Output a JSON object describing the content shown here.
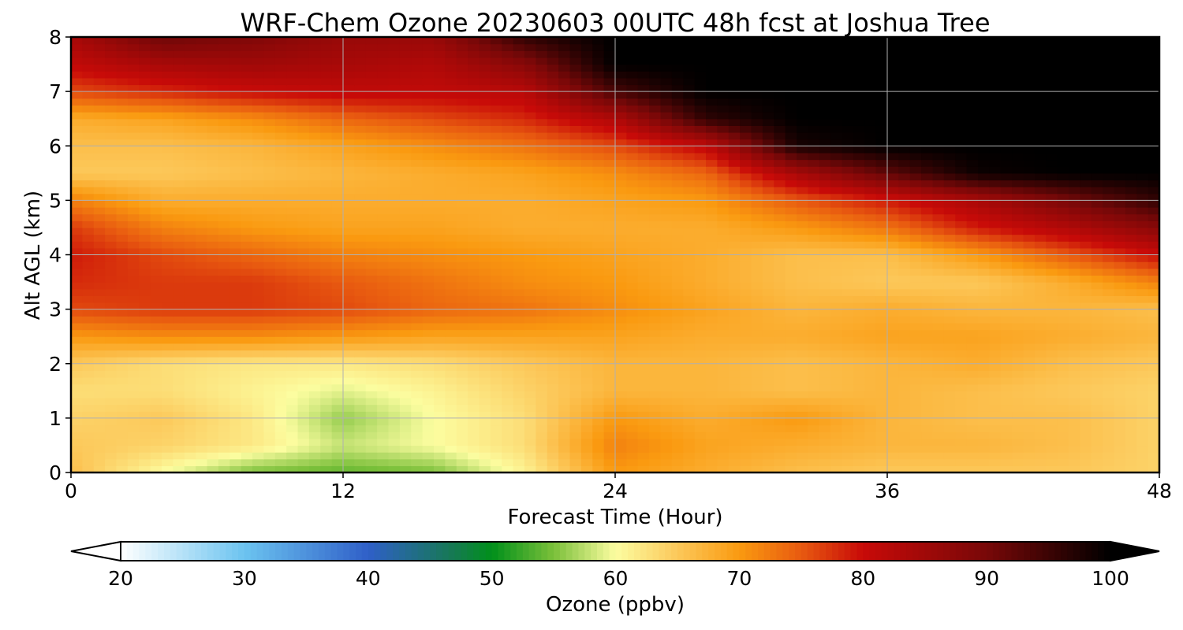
{
  "chart_data": {
    "type": "heatmap",
    "title": "WRF-Chem Ozone  20230603 00UTC 48h fcst at Joshua Tree",
    "xlabel": "Forecast Time (Hour)",
    "ylabel": "Alt AGL (km)",
    "xlim": [
      0,
      48
    ],
    "ylim": [
      0,
      8
    ],
    "x_ticks": [
      0,
      12,
      24,
      36,
      48
    ],
    "y_ticks": [
      0,
      1,
      2,
      3,
      4,
      5,
      6,
      7,
      8
    ],
    "grid": true,
    "colorbar": {
      "label": "Ozone  (ppbv)",
      "min": 20,
      "max": 100,
      "extend": "both",
      "ticks": [
        20,
        30,
        40,
        50,
        60,
        70,
        80,
        90,
        100
      ],
      "colors": [
        {
          "v": 20,
          "c": "#ffffff"
        },
        {
          "v": 30,
          "c": "#6cc4f0"
        },
        {
          "v": 40,
          "c": "#2f5fc8"
        },
        {
          "v": 47,
          "c": "#157a50"
        },
        {
          "v": 50,
          "c": "#00901a"
        },
        {
          "v": 55,
          "c": "#7bc03a"
        },
        {
          "v": 60,
          "c": "#fcfda0"
        },
        {
          "v": 65,
          "c": "#fcc85a"
        },
        {
          "v": 70,
          "c": "#fa9a10"
        },
        {
          "v": 75,
          "c": "#e85a10"
        },
        {
          "v": 80,
          "c": "#c80a08"
        },
        {
          "v": 90,
          "c": "#780808"
        },
        {
          "v": 100,
          "c": "#000000"
        }
      ]
    },
    "x": [
      0,
      4,
      8,
      12,
      16,
      20,
      24,
      28,
      32,
      36,
      40,
      44,
      48
    ],
    "y": [
      0,
      0.5,
      1,
      1.5,
      2,
      2.5,
      3,
      3.5,
      4,
      4.5,
      5,
      5.5,
      6,
      6.5,
      7,
      7.5,
      8
    ],
    "values": [
      [
        66,
        60,
        55,
        54,
        55,
        61,
        70,
        68,
        66,
        65,
        65,
        65,
        64
      ],
      [
        65,
        64,
        62,
        58,
        60,
        63,
        72,
        69,
        68,
        67,
        67,
        66,
        64
      ],
      [
        64,
        65,
        62,
        56,
        60,
        63,
        70,
        68,
        70,
        67,
        66,
        66,
        64
      ],
      [
        63,
        63,
        61,
        59,
        61,
        64,
        67,
        67,
        66,
        67,
        66,
        65,
        64
      ],
      [
        65,
        63,
        62,
        62,
        63,
        65,
        67,
        67,
        66,
        67,
        68,
        66,
        65
      ],
      [
        70,
        71,
        71,
        70,
        69,
        69,
        69,
        68,
        68,
        69,
        69,
        68,
        67
      ],
      [
        76,
        77,
        77,
        76,
        74,
        73,
        71,
        69,
        67,
        68,
        67,
        67,
        66
      ],
      [
        78,
        77,
        77,
        75,
        73,
        71,
        70,
        68,
        66,
        65,
        65,
        68,
        72
      ],
      [
        79,
        76,
        74,
        72,
        71,
        70,
        69,
        68,
        66,
        66,
        70,
        75,
        80
      ],
      [
        77,
        72,
        70,
        69,
        69,
        68,
        68,
        68,
        70,
        73,
        79,
        83,
        88
      ],
      [
        72,
        68,
        68,
        68,
        68,
        68,
        69,
        70,
        75,
        79,
        84,
        90,
        96
      ],
      [
        65,
        65,
        66,
        67,
        68,
        69,
        71,
        74,
        84,
        92,
        99,
        100,
        100
      ],
      [
        66,
        66,
        67,
        69,
        71,
        73,
        76,
        81,
        98,
        100,
        100,
        100,
        100
      ],
      [
        68,
        69,
        71,
        74,
        76,
        78,
        83,
        96,
        100,
        100,
        100,
        100,
        100
      ],
      [
        76,
        78,
        80,
        81,
        81,
        82,
        94,
        100,
        100,
        100,
        100,
        100,
        100
      ],
      [
        81,
        84,
        85,
        84,
        83,
        88,
        100,
        100,
        100,
        100,
        100,
        100,
        100
      ],
      [
        84,
        91,
        89,
        86,
        86,
        96,
        100,
        100,
        100,
        100,
        100,
        100,
        100
      ]
    ]
  }
}
